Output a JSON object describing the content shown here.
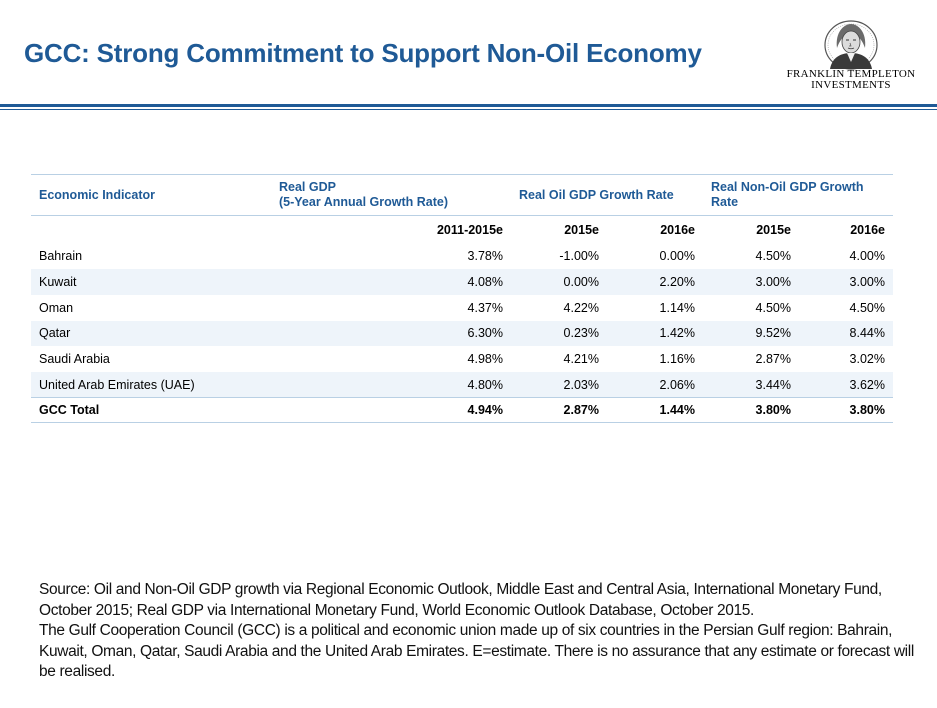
{
  "header": {
    "title": "GCC: Strong Commitment to Support Non-Oil Economy",
    "logo_line1": "FRANKLIN TEMPLETON",
    "logo_line2": "INVESTMENTS"
  },
  "table": {
    "headers": {
      "indicator": "Economic Indicator",
      "real_gdp_line1": "Real GDP",
      "real_gdp_line2": "(5-Year Annual Growth Rate)",
      "oil_gdp": "Real Oil GDP Growth Rate",
      "non_oil_gdp": "Real Non-Oil GDP Growth Rate"
    },
    "subheaders": [
      "2011-2015e",
      "2015e",
      "2016e",
      "2015e",
      "2016e"
    ],
    "rows": [
      {
        "name": "Bahrain",
        "values": [
          "3.78%",
          "-1.00%",
          "0.00%",
          "4.50%",
          "4.00%"
        ]
      },
      {
        "name": "Kuwait",
        "values": [
          "4.08%",
          "0.00%",
          "2.20%",
          "3.00%",
          "3.00%"
        ]
      },
      {
        "name": "Oman",
        "values": [
          "4.37%",
          "4.22%",
          "1.14%",
          "4.50%",
          "4.50%"
        ]
      },
      {
        "name": "Qatar",
        "values": [
          "6.30%",
          "0.23%",
          "1.42%",
          "9.52%",
          "8.44%"
        ]
      },
      {
        "name": "Saudi Arabia",
        "values": [
          "4.98%",
          "4.21%",
          "1.16%",
          "2.87%",
          "3.02%"
        ]
      },
      {
        "name": "United Arab Emirates (UAE)",
        "values": [
          "4.80%",
          "2.03%",
          "2.06%",
          "3.44%",
          "3.62%"
        ]
      }
    ],
    "total": {
      "name": "GCC Total",
      "values": [
        "4.94%",
        "2.87%",
        "1.44%",
        "3.80%",
        "3.80%"
      ]
    }
  },
  "footnote": {
    "source": "Source: Oil and Non-Oil GDP growth via Regional Economic Outlook, Middle East and Central Asia, International Monetary Fund, October 2015; Real GDP via International Monetary Fund, World Economic Outlook Database, October 2015.",
    "definition": "The Gulf Cooperation Council (GCC) is a political and economic union made up of six countries in the Persian Gulf region: Bahrain, Kuwait, Oman, Qatar, Saudi Arabia and the United Arab Emirates. E=estimate. There is no assurance that any estimate or forecast will be realised."
  },
  "colors": {
    "title": "#1f5a96",
    "rule": "#1f5a96",
    "row_shade": "#eef4fa",
    "table_border": "#b9d0e4"
  },
  "icons": [
    "franklin-portrait-logo-icon"
  ]
}
